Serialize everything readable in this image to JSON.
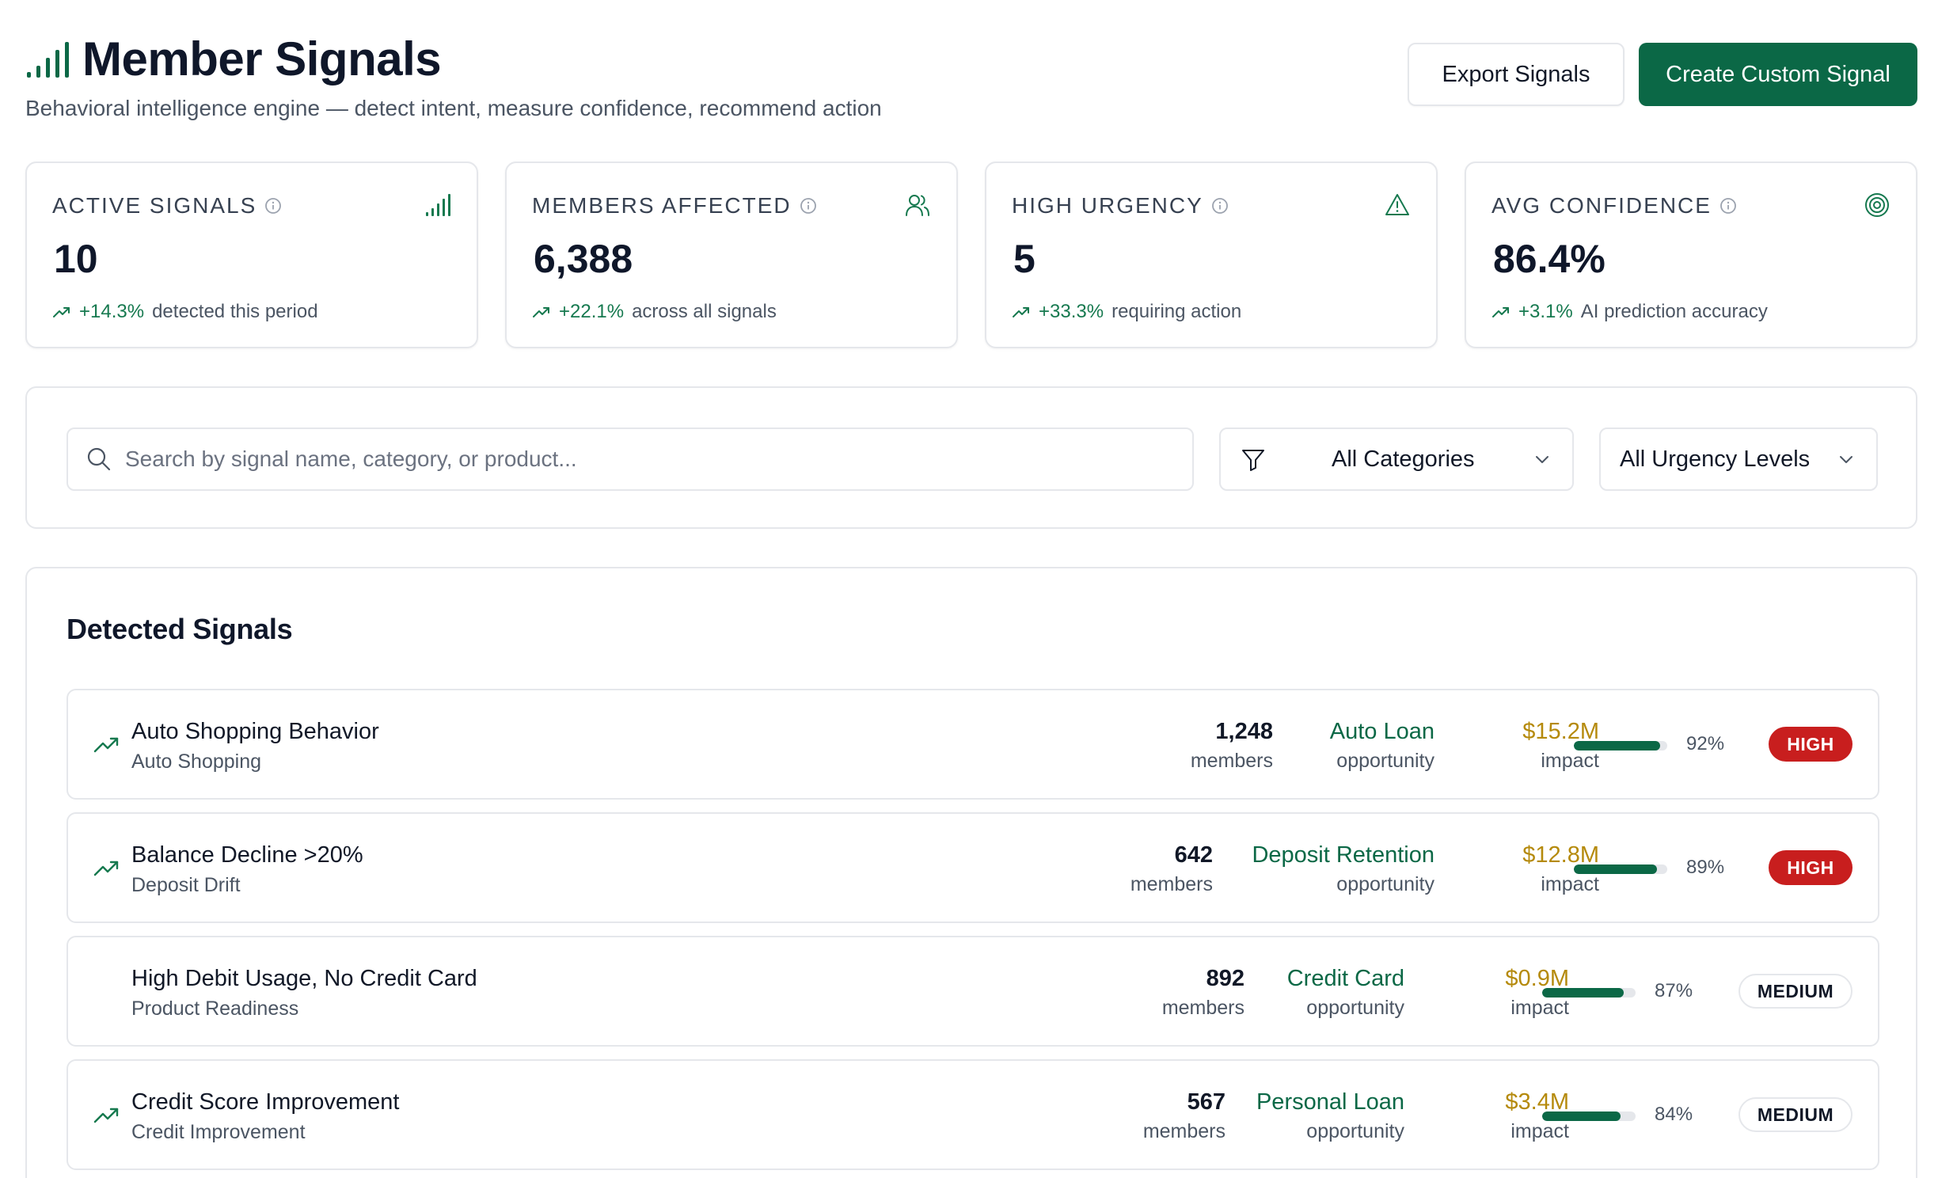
{
  "header": {
    "title": "Member Signals",
    "subtitle": "Behavioral intelligence engine — detect intent, measure confidence, recommend action",
    "export_label": "Export Signals",
    "create_label": "Create Custom Signal"
  },
  "colors": {
    "brand": "#0b6846",
    "trend": "#16794f",
    "high": "#c81e1e",
    "impact": "#b58a0c"
  },
  "kpis": [
    {
      "label": "ACTIVE SIGNALS",
      "value": "10",
      "trend": "+14.3%",
      "desc": "detected this period",
      "icon": "signal-bars-icon"
    },
    {
      "label": "MEMBERS AFFECTED",
      "value": "6,388",
      "trend": "+22.1%",
      "desc": "across all signals",
      "icon": "users-icon"
    },
    {
      "label": "HIGH URGENCY",
      "value": "5",
      "trend": "+33.3%",
      "desc": "requiring action",
      "icon": "alert-triangle-icon"
    },
    {
      "label": "AVG CONFIDENCE",
      "value": "86.4%",
      "trend": "+3.1%",
      "desc": "AI prediction accuracy",
      "icon": "target-icon"
    }
  ],
  "filters": {
    "search_placeholder": "Search by signal name, category, or product...",
    "category": "All Categories",
    "urgency": "All Urgency Levels"
  },
  "signals": {
    "title": "Detected Signals",
    "rows": [
      {
        "name": "Auto Shopping Behavior",
        "category": "Auto Shopping",
        "members": "1,248",
        "members_label": "members",
        "product": "Auto Loan",
        "product_label": "opportunity",
        "impact": "$15.2M",
        "impact_label": "impact",
        "confidence": 92,
        "confidence_text": "92%",
        "urgency": "HIGH",
        "trend_icon": true
      },
      {
        "name": "Balance Decline >20%",
        "category": "Deposit Drift",
        "members": "642",
        "members_label": "members",
        "product": "Deposit Retention",
        "product_label": "opportunity",
        "impact": "$12.8M",
        "impact_label": "impact",
        "confidence": 89,
        "confidence_text": "89%",
        "urgency": "HIGH",
        "trend_icon": true
      },
      {
        "name": "High Debit Usage, No Credit Card",
        "category": "Product Readiness",
        "members": "892",
        "members_label": "members",
        "product": "Credit Card",
        "product_label": "opportunity",
        "impact": "$0.9M",
        "impact_label": "impact",
        "confidence": 87,
        "confidence_text": "87%",
        "urgency": "MEDIUM",
        "trend_icon": false
      },
      {
        "name": "Credit Score Improvement",
        "category": "Credit Improvement",
        "members": "567",
        "members_label": "members",
        "product": "Personal Loan",
        "product_label": "opportunity",
        "impact": "$3.4M",
        "impact_label": "impact",
        "confidence": 84,
        "confidence_text": "84%",
        "urgency": "MEDIUM",
        "trend_icon": true
      }
    ]
  }
}
